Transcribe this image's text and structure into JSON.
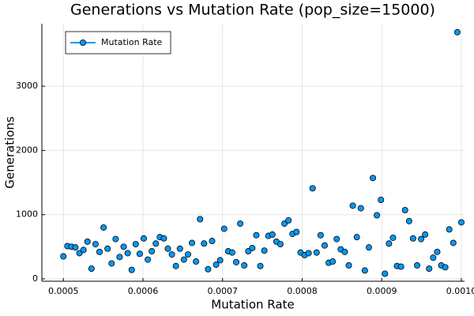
{
  "chart_data": {
    "type": "line",
    "title": "Generations vs Mutation Rate (pop_size=15000)",
    "x_label": "Mutation Rate",
    "y_label": "Generations",
    "x": [
      0.0005,
      0.00050505,
      0.0005101,
      0.00051515,
      0.0005202,
      0.00052525,
      0.0005303,
      0.00053535,
      0.0005404,
      0.00054545,
      0.00055051,
      0.00055556,
      0.00056061,
      0.00056566,
      0.00057071,
      0.00057576,
      0.00058081,
      0.00058586,
      0.00059091,
      0.00059596,
      0.00060101,
      0.00060606,
      0.00061111,
      0.00061616,
      0.00062121,
      0.00062626,
      0.00063131,
      0.00063636,
      0.00064141,
      0.00064646,
      0.00065152,
      0.00065657,
      0.00066162,
      0.00066667,
      0.00067172,
      0.00067677,
      0.00068182,
      0.00068687,
      0.00069192,
      0.00069697,
      0.00070202,
      0.00070707,
      0.00071212,
      0.00071717,
      0.00072222,
      0.00072727,
      0.00073232,
      0.00073737,
      0.00074242,
      0.00074747,
      0.00075253,
      0.00075758,
      0.00076263,
      0.00076768,
      0.00077273,
      0.00077778,
      0.00078283,
      0.00078788,
      0.00079293,
      0.00079798,
      0.00080303,
      0.00080808,
      0.00081313,
      0.00081818,
      0.00082323,
      0.00082828,
      0.00083333,
      0.00083838,
      0.00084343,
      0.00084848,
      0.00085354,
      0.00085859,
      0.00086364,
      0.00086869,
      0.00087374,
      0.00087879,
      0.00088384,
      0.00088889,
      0.00089394,
      0.00089899,
      0.00090404,
      0.00090909,
      0.00091414,
      0.00091919,
      0.00092424,
      0.00092929,
      0.00093434,
      0.00093939,
      0.00094444,
      0.00094949,
      0.00095455,
      0.0009596,
      0.00096465,
      0.0009697,
      0.00097475,
      0.0009798,
      0.00098485,
      0.0009899,
      0.00099495,
      0.001
    ],
    "series": [
      {
        "name": "Mutation Rate",
        "color": "#009af9",
        "values": [
          350,
          510,
          500,
          490,
          400,
          450,
          580,
          160,
          540,
          420,
          800,
          470,
          240,
          620,
          340,
          500,
          400,
          140,
          540,
          390,
          630,
          300,
          430,
          550,
          650,
          630,
          470,
          380,
          200,
          470,
          300,
          380,
          560,
          270,
          930,
          550,
          150,
          590,
          220,
          290,
          780,
          430,
          410,
          260,
          860,
          210,
          430,
          480,
          680,
          200,
          440,
          670,
          690,
          580,
          540,
          860,
          910,
          700,
          730,
          410,
          370,
          400,
          1410,
          410,
          680,
          520,
          250,
          270,
          620,
          460,
          420,
          210,
          1140,
          650,
          1100,
          130,
          490,
          1570,
          990,
          1230,
          80,
          550,
          640,
          200,
          190,
          1070,
          900,
          630,
          210,
          620,
          690,
          160,
          330,
          420,
          210,
          180,
          770,
          560,
          3840,
          880
        ]
      }
    ],
    "xlim": [
      0.000473,
      0.001004
    ],
    "ylim": [
      -37,
      3973
    ],
    "xticks": [
      0.0005,
      0.0006,
      0.0007,
      0.0008,
      0.0009,
      {
        "value": 0.001,
        "label": "0.0010"
      }
    ],
    "yticks": [
      0,
      1000,
      2000,
      3000
    ],
    "grid": true,
    "legend": "top-left"
  }
}
